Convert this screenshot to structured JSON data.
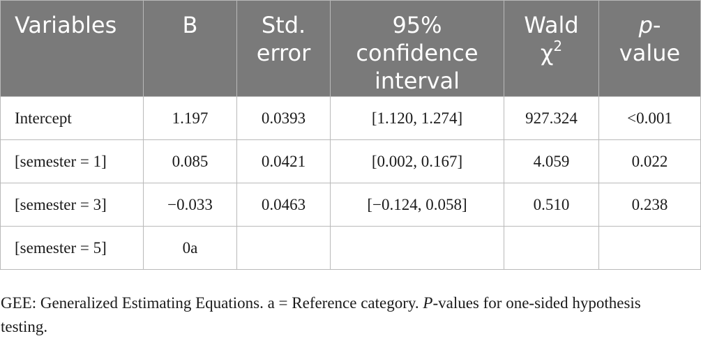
{
  "headers": {
    "variables": "Variables",
    "b": "B",
    "std_error": [
      "Std.",
      "error"
    ],
    "ci": [
      "95%",
      "confidence",
      "interval"
    ],
    "wald_word": "Wald",
    "wald_chi": "χ",
    "wald_exp": "2",
    "p_italic": "p",
    "p_dash": "-",
    "p_value": "value"
  },
  "rows": [
    {
      "variable": "Intercept",
      "b": "1.197",
      "se": "0.0393",
      "ci": "[1.120, 1.274]",
      "wald": "927.324",
      "p": "<0.001"
    },
    {
      "variable": "[semester = 1]",
      "b": "0.085",
      "se": "0.0421",
      "ci": "[0.002, 0.167]",
      "wald": "4.059",
      "p": "0.022"
    },
    {
      "variable": "[semester = 3]",
      "b": "−0.033",
      "se": "0.0463",
      "ci": "[−0.124, 0.058]",
      "wald": "0.510",
      "p": "0.238"
    },
    {
      "variable": "[semester = 5]",
      "b": "0a",
      "se": "",
      "ci": "",
      "wald": "",
      "p": ""
    }
  ],
  "footnote": {
    "part1": "GEE: Generalized Estimating Equations. a = Reference category. ",
    "p_italic": "P",
    "part2": "-values for one-sided hypothesis testing."
  }
}
